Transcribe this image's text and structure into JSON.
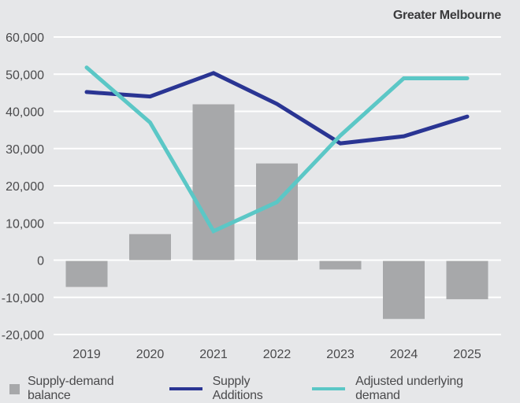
{
  "chart_data": {
    "type": "bar",
    "title": "Greater Melbourne",
    "xlabel": "",
    "ylabel": "",
    "categories": [
      "2019",
      "2020",
      "2021",
      "2022",
      "2023",
      "2024",
      "2025"
    ],
    "ylim": [
      -20000,
      60000
    ],
    "yticks": [
      60000,
      50000,
      40000,
      30000,
      20000,
      10000,
      0,
      -10000,
      -20000
    ],
    "ytick_labels": [
      "60,000",
      "50,000",
      "40,000",
      "30,000",
      "20,000",
      "10,000",
      "0",
      "-10,000",
      "-20,000"
    ],
    "grid": true,
    "legend_position": "bottom",
    "series": [
      {
        "name": "Supply-demand balance",
        "kind": "bar",
        "color": "#a7a8aa",
        "values": [
          -7000,
          7000,
          41900,
          26000,
          -2300,
          -15600,
          -10300
        ]
      },
      {
        "name": "Supply Additions",
        "kind": "line",
        "color": "#2a3593",
        "values": [
          45200,
          44000,
          50300,
          42000,
          31400,
          33300,
          38600
        ]
      },
      {
        "name": "Adjusted underlying demand",
        "kind": "line",
        "color": "#5bc7c6",
        "values": [
          51800,
          37000,
          7800,
          15600,
          33500,
          48900,
          48900
        ]
      }
    ]
  }
}
